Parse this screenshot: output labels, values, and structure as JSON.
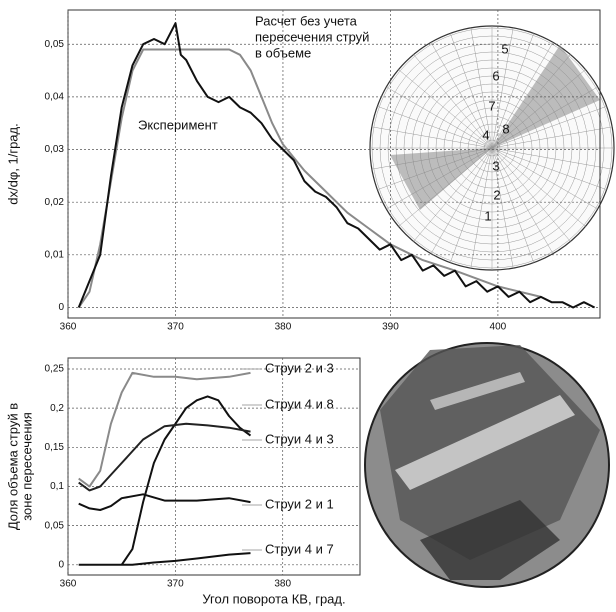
{
  "chart_data": [
    {
      "type": "line",
      "y_label": "dx/dφ, 1/град.",
      "xlim": [
        360,
        409.5
      ],
      "ylim": [
        -0.002,
        0.0565
      ],
      "xticks": [
        360,
        370,
        380,
        390,
        400
      ],
      "yticks": [
        0,
        {
          "value": 0.01,
          "label": "0,01"
        },
        {
          "value": 0.02,
          "label": "0,02"
        },
        {
          "value": 0.03,
          "label": "0,03"
        },
        {
          "value": 0.04,
          "label": "0,04"
        },
        {
          "value": 0.05,
          "label": "0,05"
        }
      ],
      "grid": true,
      "diagram_labels": [
        "1",
        "2",
        "3",
        "4",
        "5",
        "6",
        "7",
        "8"
      ],
      "series": [
        {
          "name": [
            "Расчет без учета",
            "пересечения струй",
            "в объеме"
          ],
          "color": "#8a8a8a",
          "x": [
            361,
            362,
            363,
            364,
            365,
            366,
            367,
            368,
            370,
            372,
            375,
            376,
            377,
            378,
            379,
            380,
            382,
            384,
            386,
            388,
            390,
            393,
            396,
            400,
            404
          ],
          "values": [
            0,
            0.003,
            0.012,
            0.024,
            0.036,
            0.045,
            0.049,
            0.049,
            0.049,
            0.049,
            0.049,
            0.048,
            0.045,
            0.04,
            0.035,
            0.031,
            0.026,
            0.022,
            0.018,
            0.015,
            0.012,
            0.009,
            0.007,
            0.004,
            0.002
          ]
        },
        {
          "name": [
            "Эксперимент"
          ],
          "color": "#111111",
          "x": [
            361,
            363,
            364,
            365,
            366,
            367,
            368,
            369,
            369.5,
            370,
            370.5,
            371,
            372,
            373,
            374,
            375,
            376,
            377,
            378,
            379,
            380,
            381,
            382,
            383,
            384,
            385,
            386,
            387,
            388,
            389,
            390,
            391,
            392,
            393,
            394,
            395,
            396,
            397,
            398,
            399,
            400,
            401,
            402,
            403,
            404,
            405,
            406,
            407,
            408,
            409
          ],
          "values": [
            0,
            0.01,
            0.025,
            0.038,
            0.046,
            0.05,
            0.051,
            0.05,
            0.052,
            0.054,
            0.048,
            0.047,
            0.043,
            0.04,
            0.039,
            0.04,
            0.038,
            0.037,
            0.035,
            0.032,
            0.03,
            0.028,
            0.024,
            0.022,
            0.021,
            0.019,
            0.016,
            0.015,
            0.013,
            0.011,
            0.012,
            0.009,
            0.01,
            0.007,
            0.008,
            0.006,
            0.007,
            0.004,
            0.005,
            0.003,
            0.004,
            0.002,
            0.003,
            0.001,
            0.002,
            0.001,
            0.001,
            0,
            0.001,
            0
          ]
        }
      ]
    },
    {
      "type": "line",
      "x_label": "Угол поворота КВ, град.",
      "y_label": [
        "Доля объема струй в",
        "зоне пересечения"
      ],
      "xlim": [
        360,
        387.2
      ],
      "ylim": [
        -0.013,
        0.264
      ],
      "xticks": [
        360,
        370,
        380
      ],
      "yticks": [
        0,
        {
          "value": 0.05,
          "label": "0,05"
        },
        {
          "value": 0.1,
          "label": "0,1"
        },
        {
          "value": 0.15,
          "label": "0,15"
        },
        {
          "value": 0.2,
          "label": "0,2"
        },
        {
          "value": 0.25,
          "label": "0,25"
        }
      ],
      "grid": true,
      "series": [
        {
          "name": "Струи 2 и 3",
          "color": "#8a8a8a",
          "x": [
            361,
            362,
            363,
            364,
            365,
            366,
            368,
            370,
            372,
            375,
            377
          ],
          "values": [
            0.11,
            0.1,
            0.12,
            0.18,
            0.22,
            0.245,
            0.24,
            0.24,
            0.237,
            0.24,
            0.245
          ]
        },
        {
          "name": "Струи 4 и 8",
          "color": "#111111",
          "x": [
            365,
            366,
            367,
            368,
            369,
            370,
            371,
            372,
            373,
            374,
            375,
            376,
            377
          ],
          "values": [
            0,
            0.02,
            0.08,
            0.13,
            0.16,
            0.18,
            0.2,
            0.21,
            0.215,
            0.21,
            0.19,
            0.175,
            0.165
          ]
        },
        {
          "name": "Струи 4 и 3",
          "color": "#222222",
          "x": [
            361,
            362,
            363,
            365,
            367,
            369,
            371,
            373,
            375,
            377
          ],
          "values": [
            0.105,
            0.095,
            0.1,
            0.13,
            0.16,
            0.177,
            0.18,
            0.178,
            0.175,
            0.17
          ]
        },
        {
          "name": "Струи 2 и 1",
          "color": "#111111",
          "x": [
            361,
            362,
            363,
            364,
            365,
            367,
            369,
            372,
            375,
            377
          ],
          "values": [
            0.078,
            0.072,
            0.07,
            0.075,
            0.085,
            0.09,
            0.082,
            0.082,
            0.085,
            0.08
          ]
        },
        {
          "name": "Струи 4 и 7",
          "color": "#111111",
          "x": [
            361,
            366,
            368,
            370,
            372,
            375,
            377
          ],
          "values": [
            0,
            0,
            0.003,
            0.005,
            0.008,
            0.013,
            0.015
          ]
        }
      ]
    }
  ]
}
